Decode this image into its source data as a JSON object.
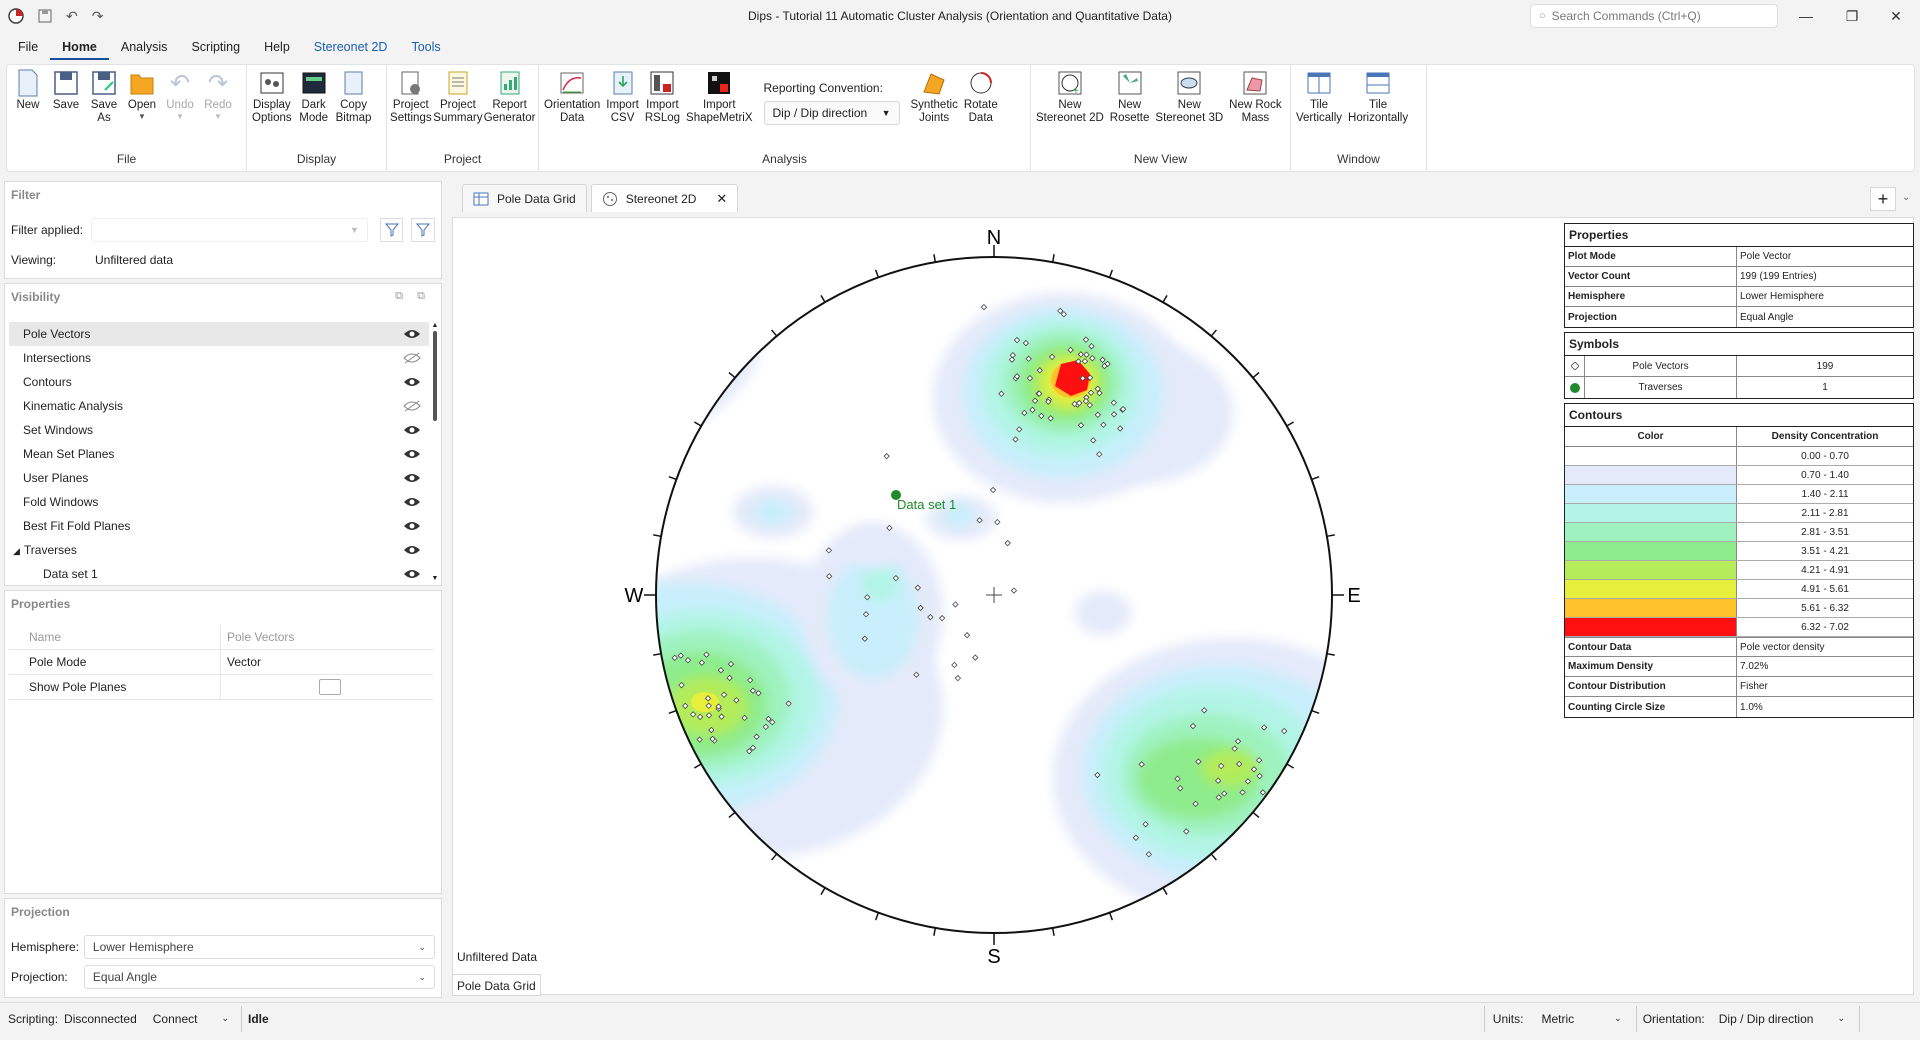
{
  "window": {
    "title": "Dips - Tutorial 11 Automatic Cluster Analysis (Orientation and Quantitative Data)",
    "search_placeholder": "Search Commands (Ctrl+Q)"
  },
  "menu": [
    "File",
    "Home",
    "Analysis",
    "Scripting",
    "Help",
    "Stereonet 2D",
    "Tools"
  ],
  "ribbon": {
    "file": {
      "label": "File",
      "buttons": [
        "New",
        "Save",
        "Save\nAs",
        "Open",
        "Undo",
        "Redo"
      ]
    },
    "display": {
      "label": "Display",
      "buttons": [
        "Display\nOptions",
        "Dark\nMode",
        "Copy\nBitmap"
      ]
    },
    "project": {
      "label": "Project",
      "buttons": [
        "Project\nSettings",
        "Project\nSummary",
        "Report\nGenerator"
      ]
    },
    "analysis": {
      "label": "Analysis",
      "buttons": [
        "Orientation\nData",
        "Import\nCSV",
        "Import\nRSLog",
        "Import\nShapeMetriX"
      ],
      "reporting_label": "Reporting Convention:",
      "reporting_value": "Dip / Dip direction",
      "buttons2": [
        "Synthetic\nJoints",
        "Rotate\nData"
      ]
    },
    "new_view": {
      "label": "New View",
      "buttons": [
        "New\nStereonet 2D",
        "New\nRosette",
        "New\nStereonet 3D",
        "New Rock\nMass"
      ]
    },
    "window_group": {
      "label": "Window",
      "buttons": [
        "Tile\nVertically",
        "Tile\nHorizontally"
      ]
    }
  },
  "filter": {
    "title": "Filter",
    "applied_label": "Filter applied:",
    "viewing_label": "Viewing:",
    "viewing_value": "Unfiltered data"
  },
  "visibility": {
    "title": "Visibility",
    "items": [
      {
        "label": "Pole Vectors",
        "visible": true
      },
      {
        "label": "Intersections",
        "visible": false
      },
      {
        "label": "Contours",
        "visible": true
      },
      {
        "label": "Kinematic Analysis",
        "visible": false
      },
      {
        "label": "Set Windows",
        "visible": true
      },
      {
        "label": "Mean Set Planes",
        "visible": true
      },
      {
        "label": "User Planes",
        "visible": true
      },
      {
        "label": "Fold Windows",
        "visible": true
      },
      {
        "label": "Best Fit Fold Planes",
        "visible": true
      },
      {
        "label": "Traverses",
        "visible": true
      },
      {
        "label": "Data set 1",
        "visible": true
      }
    ]
  },
  "properties": {
    "title": "Properties",
    "head_name": "Name",
    "head_value": "Pole Vectors",
    "rows": [
      {
        "name": "Pole Mode",
        "value": "Vector"
      },
      {
        "name": "Show Pole Planes",
        "value": ""
      }
    ]
  },
  "projection": {
    "title": "Projection",
    "hemisphere_label": "Hemisphere:",
    "hemisphere_value": "Lower Hemisphere",
    "projection_label": "Projection:",
    "projection_value": "Equal Angle"
  },
  "tabs": [
    "Pole Data Grid",
    "Stereonet 2D"
  ],
  "stereonet": {
    "north": "N",
    "south": "S",
    "east": "E",
    "west": "W",
    "traverse_label": "Data set 1",
    "unfiltered_label": "Unfiltered Data",
    "bottom_tab": "Pole Data Grid"
  },
  "legend": {
    "properties_title": "Properties",
    "properties": [
      {
        "k": "Plot Mode",
        "v": "Pole Vector"
      },
      {
        "k": "Vector Count",
        "v": "199 (199 Entries)"
      },
      {
        "k": "Hemisphere",
        "v": "Lower Hemisphere"
      },
      {
        "k": "Projection",
        "v": "Equal Angle"
      }
    ],
    "symbols_title": "Symbols",
    "symbols": [
      {
        "name": "Pole Vectors",
        "count": "199"
      },
      {
        "name": "Traverses",
        "count": "1"
      }
    ],
    "contours_title": "Contours",
    "contour_head_color": "Color",
    "contour_head_range": "Density Concentration",
    "contours": [
      {
        "color": "#ffffff",
        "range": "0.00 - 0.70"
      },
      {
        "color": "#e4eafa",
        "range": "0.70 - 1.40"
      },
      {
        "color": "#c8effb",
        "range": "1.40 - 2.11"
      },
      {
        "color": "#b2f5e6",
        "range": "2.11 - 2.81"
      },
      {
        "color": "#9ff2bf",
        "range": "2.81 - 3.51"
      },
      {
        "color": "#8eec8c",
        "range": "3.51 - 4.21"
      },
      {
        "color": "#b4ec5a",
        "range": "4.21 - 4.91"
      },
      {
        "color": "#e6ef3c",
        "range": "4.91 - 5.61"
      },
      {
        "color": "#ffc22a",
        "range": "5.61 - 6.32"
      },
      {
        "color": "#ff1010",
        "range": "6.32 - 7.02"
      }
    ],
    "contour_props": [
      {
        "k": "Contour Data",
        "v": "Pole vector density"
      },
      {
        "k": "Maximum Density",
        "v": "7.02%"
      },
      {
        "k": "Contour Distribution",
        "v": "Fisher"
      },
      {
        "k": "Counting Circle Size",
        "v": "1.0%"
      }
    ]
  },
  "status": {
    "scripting_label": "Scripting:",
    "scripting_value": "Disconnected",
    "connect": "Connect",
    "state": "Idle",
    "units_label": "Units:",
    "units_value": "Metric",
    "orientation_label": "Orientation:",
    "orientation_value": "Dip / Dip direction"
  }
}
